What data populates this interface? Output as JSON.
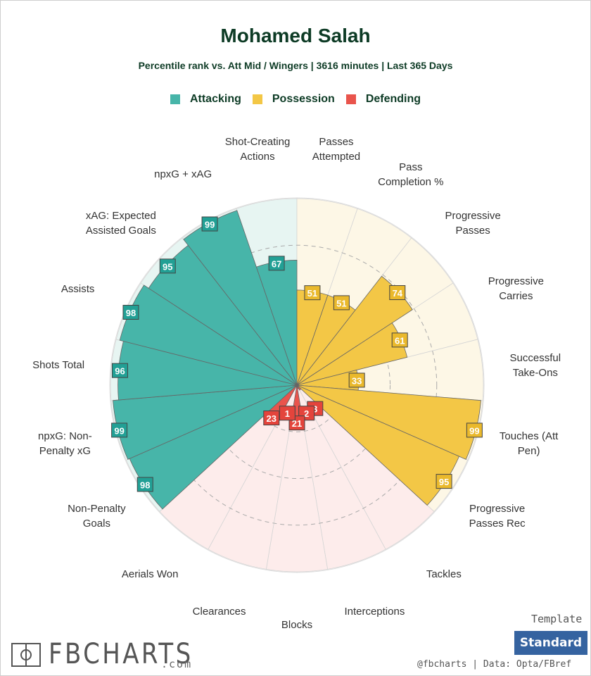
{
  "chart_data": {
    "type": "pizza",
    "title": "Mohamed Salah",
    "subtitle": "Percentile rank vs. Att Mid / Wingers | 3616 minutes | Last 365 Days",
    "ylim": [
      0,
      100
    ],
    "rticks": [
      25,
      50,
      75
    ],
    "series": [
      {
        "name": "Attacking",
        "color": "#47b5a9",
        "label_color": "#22a095",
        "background": "#e7f5f2",
        "categories": [
          "Non-Penalty\nGoals",
          "npxG: Non-\nPenalty xG",
          "Shots Total",
          "Assists",
          "xAG: Expected\nAssisted Goals",
          "npxG + xAG",
          "Shot-Creating\nActions"
        ],
        "values": [
          98,
          99,
          96,
          98,
          95,
          99,
          67
        ]
      },
      {
        "name": "Possession",
        "color": "#f3c746",
        "label_color": "#eab92c",
        "background": "#fdf7e6",
        "categories": [
          "Passes\nAttempted",
          "Pass\nCompletion %",
          "Progressive\nPasses",
          "Progressive\nCarries",
          "Successful\nTake-Ons",
          "Touches (Att\nPen)",
          "Progressive\nPasses Rec"
        ],
        "values": [
          51,
          51,
          74,
          61,
          33,
          99,
          95
        ]
      },
      {
        "name": "Defending",
        "color": "#e9544c",
        "label_color": "#e4443c",
        "background": "#fdeceb",
        "categories": [
          "Tackles",
          "Interceptions",
          "Blocks",
          "Clearances",
          "Aerials Won"
        ],
        "values": [
          3,
          2,
          21,
          1,
          23
        ]
      }
    ]
  },
  "footer": {
    "template_label": "Template",
    "template": "Standard",
    "credit": "@fbcharts | Data: Opta/FBref",
    "logo": "FBCHARTS",
    "logo_suffix": ".com"
  }
}
